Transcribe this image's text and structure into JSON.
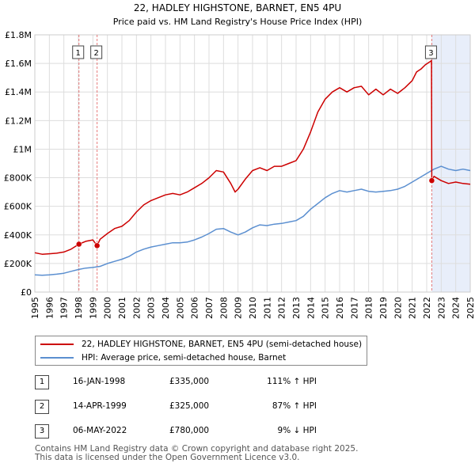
{
  "chart_data": {
    "type": "line",
    "title": "22, HADLEY HIGHSTONE, BARNET, EN5 4PU",
    "subtitle": "Price paid vs. HM Land Registry's House Price Index (HPI)",
    "xlim": [
      1995,
      2025
    ],
    "ylim": [
      0,
      1800000
    ],
    "y_ticks": [
      0,
      200000,
      400000,
      600000,
      800000,
      1000000,
      1200000,
      1400000,
      1600000,
      1800000
    ],
    "y_tick_labels": [
      "£0",
      "£200K",
      "£400K",
      "£600K",
      "£800K",
      "£1M",
      "£1.2M",
      "£1.4M",
      "£1.6M",
      "£1.8M"
    ],
    "x_ticks": [
      1995,
      1996,
      1997,
      1998,
      1999,
      2000,
      2001,
      2002,
      2003,
      2004,
      2005,
      2006,
      2007,
      2008,
      2009,
      2010,
      2011,
      2012,
      2013,
      2014,
      2015,
      2016,
      2017,
      2018,
      2019,
      2020,
      2021,
      2022,
      2023,
      2024,
      2025
    ],
    "x_tick_labels": [
      "1995",
      "1996",
      "1997",
      "1998",
      "1999",
      "2000",
      "2001",
      "2002",
      "2003",
      "2004",
      "2005",
      "2006",
      "2007",
      "2008",
      "2009",
      "2010",
      "2011",
      "2012",
      "2013",
      "2014",
      "2015",
      "2016",
      "2017",
      "2018",
      "2019",
      "2020",
      "2021",
      "2022",
      "2023",
      "2024",
      "2025"
    ],
    "grid": true,
    "shaded_region": {
      "from": 2022.35,
      "to": 2025.2
    },
    "series": [
      {
        "name": "22, HADLEY HIGHSTONE, BARNET, EN5 4PU (semi-detached house)",
        "color": "#cc0000",
        "x": [
          1995.0,
          1995.5,
          1996.0,
          1996.5,
          1997.0,
          1997.5,
          1998.04,
          1998.5,
          1999.0,
          1999.29,
          1999.5,
          2000.0,
          2000.5,
          2001.0,
          2001.5,
          2002.0,
          2002.5,
          2003.0,
          2003.5,
          2004.0,
          2004.5,
          2005.0,
          2005.5,
          2006.0,
          2006.5,
          2007.0,
          2007.5,
          2008.0,
          2008.5,
          2008.8,
          2009.0,
          2009.5,
          2010.0,
          2010.5,
          2011.0,
          2011.5,
          2012.0,
          2012.5,
          2013.0,
          2013.5,
          2014.0,
          2014.5,
          2015.0,
          2015.5,
          2016.0,
          2016.5,
          2017.0,
          2017.5,
          2018.0,
          2018.5,
          2019.0,
          2019.5,
          2020.0,
          2020.5,
          2021.0,
          2021.3,
          2021.6,
          2021.9,
          2022.2,
          2022.33,
          2022.35,
          2022.5,
          2023.0,
          2023.5,
          2024.0,
          2024.5,
          2025.0
        ],
        "y": [
          275000,
          265000,
          268000,
          272000,
          280000,
          300000,
          335000,
          355000,
          365000,
          325000,
          370000,
          410000,
          445000,
          460000,
          500000,
          560000,
          610000,
          640000,
          660000,
          680000,
          690000,
          680000,
          700000,
          730000,
          760000,
          800000,
          850000,
          840000,
          760000,
          700000,
          720000,
          790000,
          850000,
          870000,
          850000,
          880000,
          880000,
          900000,
          920000,
          1000000,
          1120000,
          1260000,
          1350000,
          1400000,
          1430000,
          1400000,
          1430000,
          1440000,
          1380000,
          1420000,
          1380000,
          1420000,
          1390000,
          1430000,
          1480000,
          1540000,
          1560000,
          1590000,
          1610000,
          1620000,
          780000,
          810000,
          780000,
          760000,
          770000,
          760000,
          755000
        ]
      },
      {
        "name": "HPI: Average price, semi-detached house, Barnet",
        "color": "#5b8fd0",
        "x": [
          1995.0,
          1995.5,
          1996.0,
          1996.5,
          1997.0,
          1997.5,
          1998.0,
          1998.5,
          1999.0,
          1999.5,
          2000.0,
          2000.5,
          2001.0,
          2001.5,
          2002.0,
          2002.5,
          2003.0,
          2003.5,
          2004.0,
          2004.5,
          2005.0,
          2005.5,
          2006.0,
          2006.5,
          2007.0,
          2007.5,
          2008.0,
          2008.5,
          2009.0,
          2009.5,
          2010.0,
          2010.5,
          2011.0,
          2011.5,
          2012.0,
          2012.5,
          2013.0,
          2013.5,
          2014.0,
          2014.5,
          2015.0,
          2015.5,
          2016.0,
          2016.5,
          2017.0,
          2017.5,
          2018.0,
          2018.5,
          2019.0,
          2019.5,
          2020.0,
          2020.5,
          2021.0,
          2021.5,
          2022.0,
          2022.5,
          2023.0,
          2023.5,
          2024.0,
          2024.5,
          2025.0
        ],
        "y": [
          120000,
          118000,
          120000,
          125000,
          132000,
          145000,
          158000,
          168000,
          172000,
          180000,
          200000,
          215000,
          230000,
          250000,
          280000,
          300000,
          315000,
          325000,
          335000,
          345000,
          345000,
          350000,
          365000,
          385000,
          410000,
          440000,
          445000,
          420000,
          400000,
          420000,
          450000,
          470000,
          465000,
          475000,
          480000,
          490000,
          500000,
          530000,
          580000,
          620000,
          660000,
          690000,
          710000,
          700000,
          710000,
          720000,
          705000,
          700000,
          705000,
          710000,
          720000,
          740000,
          770000,
          800000,
          830000,
          860000,
          880000,
          860000,
          850000,
          860000,
          850000
        ]
      }
    ],
    "markers": [
      {
        "label": "1",
        "x": 1998.04,
        "y": 335000
      },
      {
        "label": "2",
        "x": 1999.29,
        "y": 325000
      },
      {
        "label": "3",
        "x": 2022.35,
        "y": 780000
      }
    ]
  },
  "legend": {
    "items": [
      {
        "label": "22, HADLEY HIGHSTONE, BARNET, EN5 4PU (semi-detached house)",
        "color": "#cc0000"
      },
      {
        "label": "HPI: Average price, semi-detached house, Barnet",
        "color": "#5b8fd0"
      }
    ]
  },
  "sales": [
    {
      "num": "1",
      "date": "16-JAN-1998",
      "price": "£335,000",
      "hpi": "111% ↑ HPI"
    },
    {
      "num": "2",
      "date": "14-APR-1999",
      "price": "£325,000",
      "hpi": "87% ↑ HPI"
    },
    {
      "num": "3",
      "date": "06-MAY-2022",
      "price": "£780,000",
      "hpi": "9% ↓ HPI"
    }
  ],
  "footer": {
    "line1": "Contains HM Land Registry data © Crown copyright and database right 2025.",
    "line2": "This data is licensed under the Open Government Licence v3.0."
  }
}
